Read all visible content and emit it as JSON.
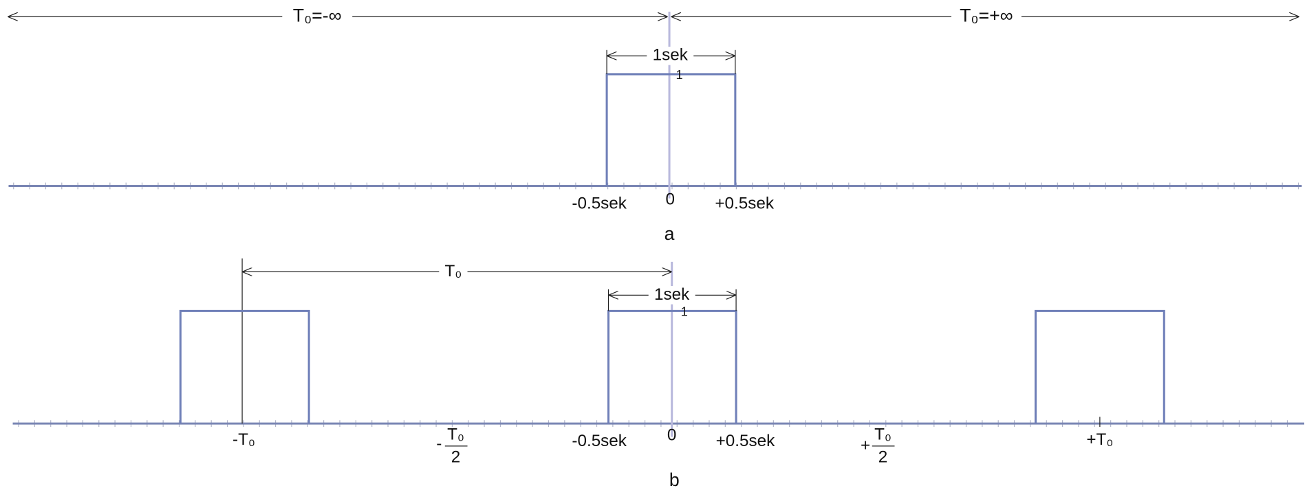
{
  "panel_a": {
    "left_period": "T₀=-∞",
    "right_period": "T₀=+∞",
    "width_label": "1sek",
    "amplitude": "1",
    "left_edge": "-0.5sek",
    "origin": "0",
    "right_edge": "+0.5sek",
    "caption": "a"
  },
  "panel_b": {
    "period_label": "T₀",
    "width_label": "1sek",
    "amplitude": "1",
    "minus_period": "-T₀",
    "minus_half_period": {
      "sign": "-",
      "numerator": "T₀",
      "denominator": "2"
    },
    "left_edge": "-0.5sek",
    "origin": "0",
    "right_edge": "+0.5sek",
    "plus_half_period": {
      "sign": "+",
      "numerator": "T₀",
      "denominator": "2"
    },
    "plus_period": "+T₀",
    "caption": "b"
  }
}
